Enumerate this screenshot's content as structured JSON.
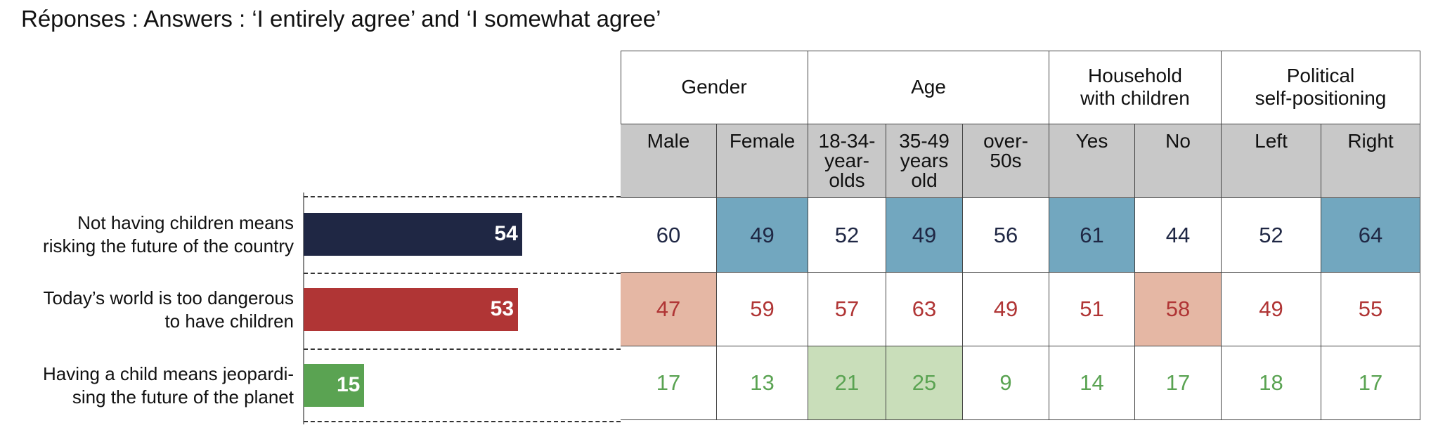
{
  "title": "Réponses : Answers : ‘I entirely agree’ and ‘I somewhat agree’",
  "chart_data": {
    "type": "bar",
    "orientation": "horizontal",
    "categories": [
      "Not having children means\nrisking the future of the country",
      "Today’s world is too dangerous\nto have children",
      "Having a child means jeopardi-\nsing the future of the planet"
    ],
    "values": [
      54,
      53,
      15
    ],
    "colors": [
      "#1f2744",
      "#b03535",
      "#5aa352"
    ]
  },
  "table": {
    "groups": [
      {
        "label": "Gender",
        "columns": [
          "Male",
          "Female"
        ]
      },
      {
        "label": "Age",
        "columns": [
          "18-34-\nyear-\nolds",
          "35-49\nyears\nold",
          "over-\n50s"
        ]
      },
      {
        "label": "Household\nwith children",
        "columns": [
          "Yes",
          "No"
        ]
      },
      {
        "label": "Political\nself-positioning",
        "columns": [
          "Left",
          "Right"
        ]
      }
    ],
    "rows": [
      {
        "values": [
          60,
          49,
          52,
          49,
          56,
          61,
          44,
          52,
          64
        ],
        "highlighted": [
          1,
          3,
          5,
          8
        ],
        "highlight_color": "#72a7bf"
      },
      {
        "values": [
          47,
          59,
          57,
          63,
          49,
          51,
          58,
          49,
          55
        ],
        "highlighted": [
          0,
          6
        ],
        "highlight_color": "#e5b7a4"
      },
      {
        "values": [
          17,
          13,
          21,
          25,
          9,
          14,
          17,
          18,
          17
        ],
        "highlighted": [
          2,
          3
        ],
        "highlight_color": "#c9deba"
      }
    ]
  }
}
